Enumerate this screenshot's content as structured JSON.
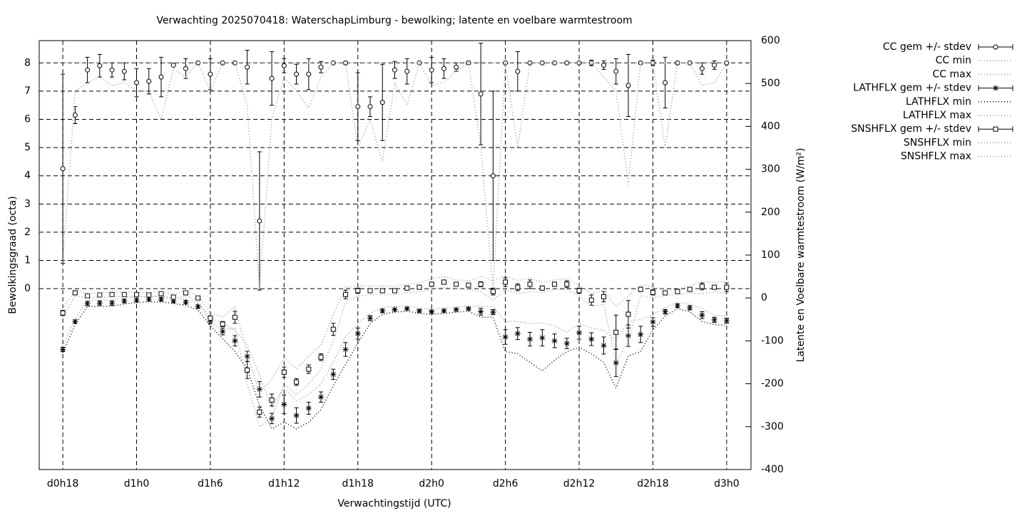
{
  "chart_data": {
    "type": "errorbars",
    "title": "Verwachting 2025070418: WaterschapLimburg - bewolking; latente en voelbare warmtestroom",
    "x_label": "Verwachtingstijd (UTC)",
    "y_label": "Bewolkingsgraad (octa)",
    "y2_label": "Latente en Voelbare warmtestroom (W/m²)",
    "x": [
      18,
      19,
      20,
      21,
      22,
      23,
      24,
      25,
      26,
      27,
      28,
      29,
      30,
      31,
      32,
      33,
      34,
      35,
      36,
      37,
      38,
      39,
      40,
      41,
      42,
      43,
      44,
      45,
      46,
      47,
      48,
      49,
      50,
      51,
      52,
      53,
      54,
      55,
      56,
      57,
      58,
      59,
      60,
      61,
      62,
      63,
      64,
      65,
      66,
      67,
      68,
      69,
      70,
      71,
      72
    ],
    "xlim": [
      16.08,
      73.98
    ],
    "xticks": [
      {
        "value": 18,
        "label": "d0h18"
      },
      {
        "value": 24,
        "label": "d1h0"
      },
      {
        "value": 30,
        "label": "d1h6"
      },
      {
        "value": 36,
        "label": "d1h12"
      },
      {
        "value": 42,
        "label": "d1h18"
      },
      {
        "value": 48,
        "label": "d2h0"
      },
      {
        "value": 54,
        "label": "d2h6"
      },
      {
        "value": 60,
        "label": "d2h12"
      },
      {
        "value": 66,
        "label": "d2h18"
      },
      {
        "value": 72,
        "label": "d3h0"
      }
    ],
    "ylim": [
      -6.41,
      8.79
    ],
    "yticks": [
      0,
      1,
      2,
      3,
      4,
      5,
      6,
      7,
      8
    ],
    "y2lim": [
      -400,
      600
    ],
    "y2ticks": [
      -400,
      -300,
      -200,
      -100,
      0,
      100,
      200,
      300,
      400,
      500,
      600
    ],
    "grid": true,
    "legend": "outside-right-top",
    "series": [
      {
        "name": "CC gem +/- stdev",
        "style": "errorbars",
        "marker": "circle",
        "color": "#000000",
        "axis": "y",
        "values": [
          4.25,
          6.15,
          7.75,
          7.9,
          7.75,
          7.7,
          7.3,
          7.35,
          7.5,
          7.92,
          7.8,
          8,
          7.6,
          8,
          8,
          7.85,
          2.4,
          7.45,
          7.9,
          7.6,
          7.6,
          7.85,
          8,
          8,
          6.45,
          6.45,
          6.6,
          7.75,
          7.7,
          8,
          7.75,
          7.8,
          7.85,
          8,
          6.9,
          4,
          8,
          7.7,
          8,
          8,
          8,
          8,
          8,
          8,
          7.92,
          7.7,
          7.2,
          8,
          8,
          7.3,
          8,
          8,
          7.8,
          7.92,
          8
        ],
        "errors": [
          3.35,
          0.3,
          0.45,
          0.4,
          0.25,
          0.3,
          0.5,
          0.45,
          0.7,
          0,
          0.35,
          0,
          0.55,
          0,
          0,
          0.6,
          2.45,
          0.95,
          0.25,
          0.35,
          0.55,
          0.2,
          0,
          0.05,
          1.2,
          0.35,
          1.35,
          0.3,
          0.45,
          0,
          0.45,
          0.35,
          0.15,
          0.05,
          1.8,
          3,
          0,
          0.7,
          0,
          0,
          0,
          0,
          0,
          0.1,
          0.15,
          0.45,
          1.1,
          0,
          0.1,
          0.9,
          0.05,
          0,
          0.2,
          0.15,
          0
        ]
      },
      {
        "name": "CC min",
        "style": "dotted",
        "color": "#999999",
        "axis": "y",
        "values": [
          0.9,
          7,
          7.3,
          7.5,
          7.2,
          7.3,
          7,
          7,
          6,
          7.8,
          7.5,
          8,
          7,
          8,
          8,
          6.5,
          0,
          6,
          7.5,
          7,
          6.4,
          7.5,
          8,
          8,
          5,
          6,
          4.5,
          7.3,
          6.5,
          8,
          7.2,
          7.3,
          7.7,
          8,
          5,
          0,
          8,
          5,
          8,
          8,
          8,
          8,
          8,
          8,
          7.5,
          7,
          3.7,
          8,
          8,
          5,
          8,
          8,
          7.2,
          7.3,
          8
        ]
      },
      {
        "name": "CC max",
        "style": "dotted",
        "color": "#999999",
        "axis": "y",
        "values": [
          8,
          8,
          8,
          8,
          8,
          8,
          8,
          8,
          8,
          8,
          8,
          8,
          8,
          8,
          8,
          8,
          8,
          8,
          8,
          8,
          8,
          8,
          8,
          8,
          8,
          8,
          8,
          8,
          8,
          8,
          8,
          8,
          8,
          8,
          8,
          8,
          8,
          8,
          8,
          8,
          8,
          8,
          8,
          8,
          8,
          8,
          8,
          8,
          8,
          8,
          8,
          8,
          8,
          8,
          8
        ]
      },
      {
        "name": "LATHFLX gem +/- stdev",
        "style": "errorbars",
        "marker": "star",
        "color": "#000000",
        "axis": "y2",
        "values": [
          -120,
          -55,
          -13,
          -12,
          -12,
          -7,
          -5,
          -3,
          -3,
          -7,
          -10,
          -20,
          -55,
          -78,
          -100,
          -136,
          -213,
          -281,
          -248,
          -274,
          -257,
          -231,
          -178,
          -120,
          -83,
          -47,
          -30,
          -27,
          -25,
          -30,
          -32,
          -30,
          -27,
          -25,
          -32,
          -33,
          -91,
          -83,
          -96,
          -93,
          -100,
          -106,
          -81,
          -96,
          -111,
          -151,
          -88,
          -85,
          -56,
          -32,
          -18,
          -23,
          -40,
          -51,
          -53
        ],
        "errors": [
          5,
          4,
          5,
          5,
          5,
          4,
          4,
          4,
          4,
          4,
          4,
          4,
          5,
          8,
          12,
          12,
          18,
          12,
          22,
          18,
          14,
          12,
          12,
          16,
          13,
          6,
          4,
          3,
          3,
          3,
          3,
          3,
          3,
          3,
          8,
          6,
          17,
          14,
          16,
          19,
          16,
          12,
          15,
          15,
          20,
          32,
          25,
          19,
          10,
          5,
          4,
          5,
          8,
          6,
          6
        ]
      },
      {
        "name": "LATHFLX min",
        "style": "dotted",
        "color": "#000000",
        "axis": "y2",
        "values": [
          -128,
          -62,
          -20,
          -20,
          -19,
          -14,
          -11,
          -9,
          -9,
          -13,
          -17,
          -28,
          -65,
          -95,
          -125,
          -165,
          -250,
          -305,
          -290,
          -305,
          -290,
          -260,
          -205,
          -155,
          -105,
          -60,
          -38,
          -33,
          -31,
          -36,
          -38,
          -36,
          -33,
          -31,
          -45,
          -45,
          -125,
          -130,
          -150,
          -170,
          -145,
          -125,
          -115,
          -130,
          -150,
          -210,
          -135,
          -125,
          -75,
          -42,
          -25,
          -32,
          -55,
          -62,
          -64
        ]
      },
      {
        "name": "LATHFLX max",
        "style": "dotted",
        "color": "#999999",
        "axis": "y2",
        "values": [
          -112,
          -48,
          -6,
          -5,
          -5,
          0,
          2,
          4,
          4,
          0,
          -3,
          -12,
          -45,
          -60,
          -75,
          -110,
          -180,
          -255,
          -210,
          -240,
          -225,
          -200,
          -150,
          -90,
          -60,
          -36,
          -22,
          -20,
          -18,
          -24,
          -26,
          -24,
          -21,
          -19,
          -20,
          -20,
          -55,
          -55,
          -60,
          -58,
          -65,
          -80,
          -60,
          -70,
          -75,
          -100,
          -55,
          -50,
          -40,
          -22,
          -10,
          -14,
          -25,
          -40,
          -42
        ]
      },
      {
        "name": "SNSHFLX gem +/- stdev",
        "style": "errorbars",
        "marker": "square",
        "color": "#000000",
        "axis": "y2",
        "values": [
          -35,
          12,
          5,
          7,
          8,
          8,
          8,
          7,
          10,
          2,
          12,
          0,
          -47,
          -61,
          -45,
          -168,
          -266,
          -238,
          -173,
          -196,
          -166,
          -138,
          -73,
          8,
          17,
          17,
          17,
          17,
          23,
          25,
          32,
          37,
          32,
          30,
          32,
          15,
          37,
          25,
          32,
          23,
          32,
          32,
          17,
          -5,
          3,
          -80,
          -38,
          20,
          13,
          12,
          15,
          20,
          27,
          25,
          25
        ],
        "errors": [
          6,
          3,
          3,
          3,
          3,
          3,
          3,
          3,
          4,
          2,
          4,
          2,
          4,
          6,
          14,
          20,
          12,
          14,
          12,
          8,
          10,
          8,
          14,
          10,
          6,
          4,
          3,
          3,
          3,
          2,
          5,
          5,
          4,
          4,
          6,
          8,
          10,
          8,
          10,
          5,
          5,
          8,
          6,
          12,
          12,
          40,
          32,
          5,
          6,
          3,
          3,
          3,
          8,
          4,
          10
        ]
      },
      {
        "name": "SNSHFLX min",
        "style": "dotted",
        "color": "#999999",
        "axis": "y2",
        "values": [
          -45,
          5,
          0,
          2,
          3,
          3,
          3,
          2,
          4,
          -3,
          5,
          -5,
          -58,
          -75,
          -70,
          -200,
          -300,
          -280,
          -200,
          -225,
          -200,
          -165,
          -100,
          -10,
          5,
          8,
          8,
          8,
          12,
          15,
          20,
          25,
          22,
          20,
          15,
          -5,
          20,
          10,
          15,
          12,
          20,
          20,
          5,
          -20,
          -15,
          -150,
          -100,
          5,
          0,
          5,
          8,
          12,
          10,
          15,
          10
        ]
      },
      {
        "name": "SNSHFLX max",
        "style": "dotted",
        "color": "#999999",
        "axis": "y2",
        "values": [
          -25,
          20,
          10,
          12,
          14,
          14,
          14,
          12,
          16,
          8,
          18,
          5,
          -35,
          -45,
          -20,
          -130,
          -220,
          -190,
          -140,
          -165,
          -135,
          -110,
          -40,
          25,
          28,
          28,
          28,
          28,
          32,
          35,
          45,
          50,
          42,
          40,
          50,
          40,
          52,
          40,
          48,
          35,
          42,
          45,
          30,
          10,
          18,
          -20,
          5,
          30,
          25,
          20,
          20,
          28,
          38,
          35,
          40
        ]
      }
    ]
  }
}
